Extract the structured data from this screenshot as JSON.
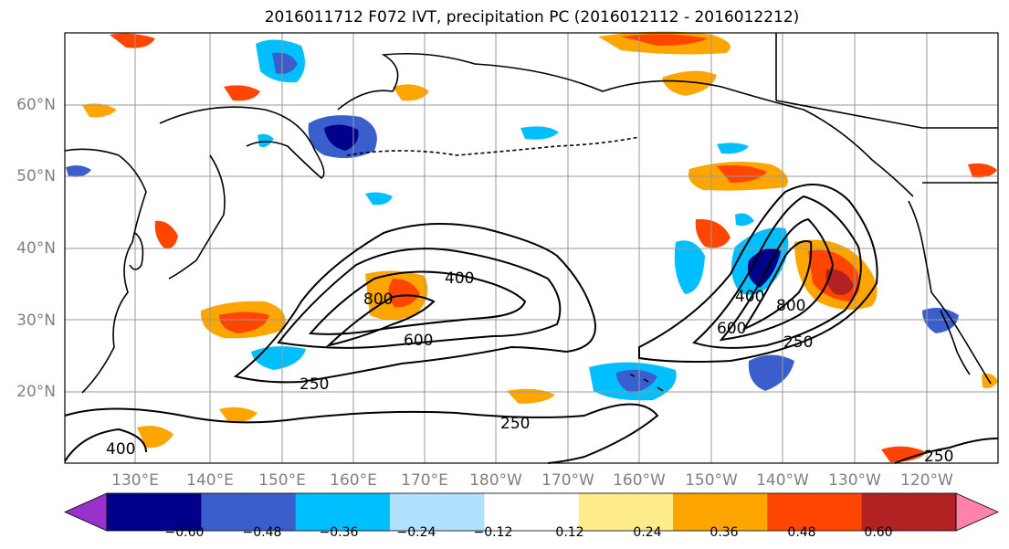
{
  "title": "2016011712 F072 IVT, precipitation PC (2016012112 - 2016012212)",
  "lon_ticks": [
    "130°E",
    "140°E",
    "150°E",
    "160°E",
    "170°E",
    "180°W",
    "170°W",
    "160°W",
    "150°W",
    "140°W",
    "130°W",
    "120°W"
  ],
  "lat_ticks": [
    "60°N",
    "50°N",
    "40°N",
    "30°N",
    "20°N"
  ],
  "colorbar": {
    "tick_labels": [
      "−0.60",
      "−0.48",
      "−0.36",
      "−0.24",
      "−0.12",
      "0.12",
      "0.24",
      "0.36",
      "0.48",
      "0.60"
    ],
    "colors": [
      "#9932cc",
      "#00008b",
      "#3a5fcd",
      "#00bfff",
      "#b0e2ff",
      "#ffffff",
      "#ffec8b",
      "#ffa500",
      "#ff4500",
      "#b22222",
      "#ff82ab"
    ]
  },
  "contour_labels": [
    "400",
    "800",
    "600",
    "250",
    "400",
    "600",
    "800",
    "250",
    "250",
    "400",
    "250"
  ],
  "colors": {
    "ocean": "#ffffff",
    "land_outline": "#000000",
    "grid": "#999999",
    "tick_text": "#808080"
  }
}
